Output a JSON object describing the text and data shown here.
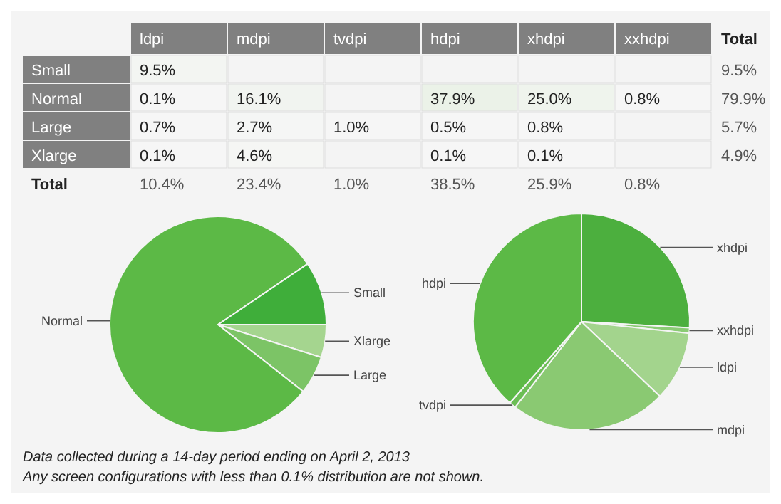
{
  "chart_data": [
    {
      "type": "heatmap",
      "categories": [
        "ldpi",
        "mdpi",
        "tvdpi",
        "hdpi",
        "xhdpi",
        "xxhdpi",
        "Total"
      ],
      "y_categories": [
        "Small",
        "Normal",
        "Large",
        "Xlarge",
        "Total"
      ],
      "cells": [
        [
          9.5,
          null,
          null,
          null,
          null,
          null,
          9.5
        ],
        [
          0.1,
          16.1,
          null,
          37.9,
          25.0,
          0.8,
          79.9
        ],
        [
          0.7,
          2.7,
          1.0,
          0.5,
          0.8,
          null,
          5.7
        ],
        [
          0.1,
          4.6,
          null,
          0.1,
          0.1,
          null,
          4.9
        ],
        [
          10.4,
          23.4,
          1.0,
          38.5,
          25.9,
          0.8,
          null
        ]
      ],
      "cell_labels": [
        [
          "9.5%",
          null,
          null,
          null,
          null,
          null,
          "9.5%"
        ],
        [
          "0.1%",
          "16.1%",
          null,
          "37.9%",
          "25.0%",
          "0.8%",
          "79.9%"
        ],
        [
          "0.7%",
          "2.7%",
          "1.0%",
          "0.5%",
          "0.8%",
          null,
          "5.7%"
        ],
        [
          "0.1%",
          "4.6%",
          null,
          "0.1%",
          "0.1%",
          null,
          "4.9%"
        ],
        [
          "10.4%",
          "23.4%",
          "1.0%",
          "38.5%",
          "25.9%",
          "0.8%",
          null
        ]
      ]
    },
    {
      "type": "pie",
      "categories": [
        "Xlarge",
        "Large",
        "Normal",
        "Small"
      ],
      "values": [
        4.9,
        5.7,
        79.9,
        9.5
      ],
      "colors": [
        "#a5d58f",
        "#7cc466",
        "#5cb946",
        "#3fae3a"
      ],
      "annotations": [
        "Data collected during a 14-day period ending on April 2, 2013",
        "Any screen configurations with less than 0.1% distribution are not shown."
      ]
    },
    {
      "type": "pie",
      "categories": [
        "xhdpi",
        "xxhdpi",
        "ldpi",
        "mdpi",
        "tvdpi",
        "hdpi"
      ],
      "values": [
        25.9,
        0.8,
        10.4,
        23.4,
        1.0,
        38.5
      ],
      "colors": [
        "#4caf3e",
        "#8acb74",
        "#a3d48d",
        "#8ac972",
        "#6cbe55",
        "#5cb946"
      ]
    }
  ]
}
